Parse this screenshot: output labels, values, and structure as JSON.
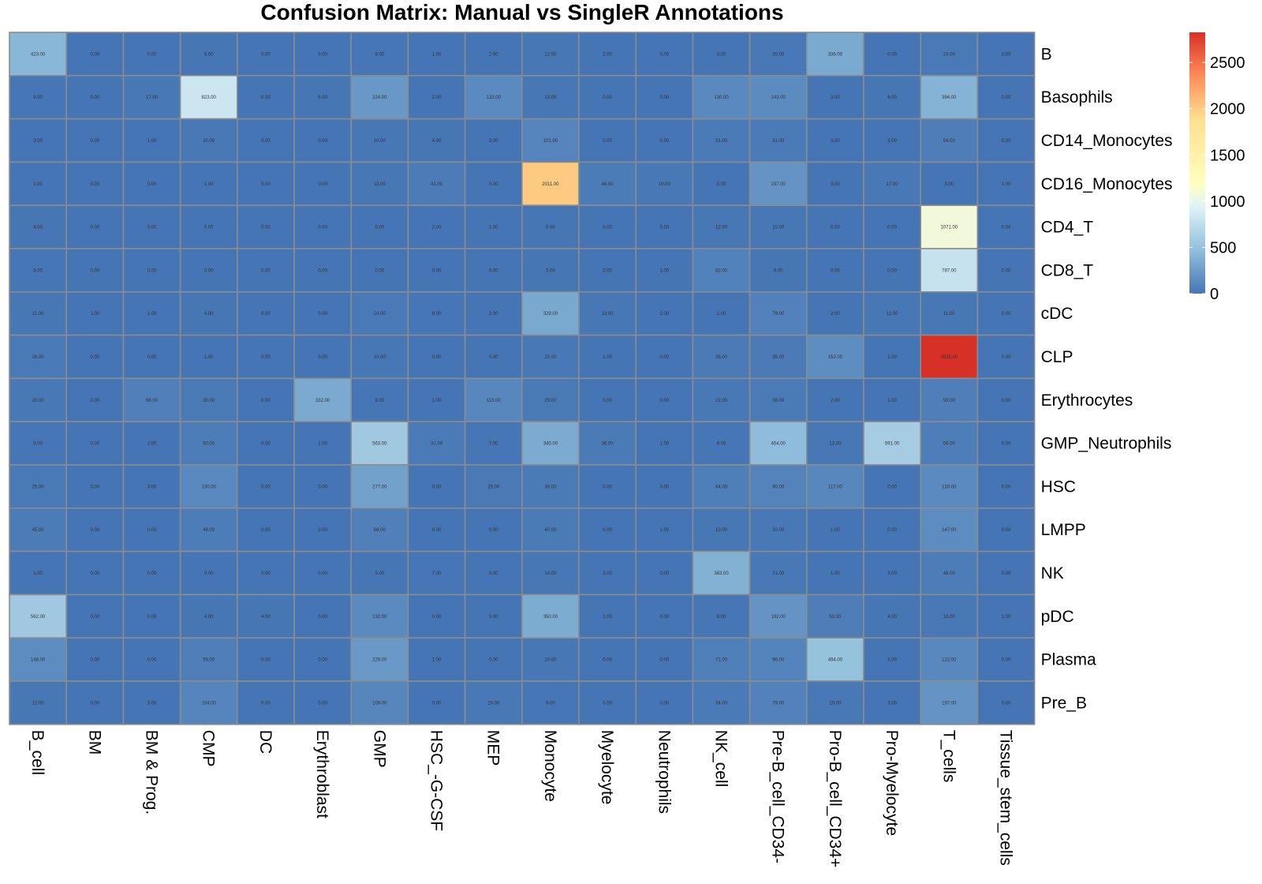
{
  "chart_data": {
    "type": "heatmap",
    "title": "Confusion Matrix: Manual vs SingleR Annotations",
    "rows": [
      "B",
      "Basophils",
      "CD14_Monocytes",
      "CD16_Monocytes",
      "CD4_T",
      "CD8_T",
      "cDC",
      "CLP",
      "Erythrocytes",
      "GMP_Neutrophils",
      "HSC",
      "LMPP",
      "NK",
      "pDC",
      "Plasma",
      "Pre_B"
    ],
    "columns": [
      "B_cell",
      "BM",
      "BM & Prog.",
      "CMP",
      "DC",
      "Erythroblast",
      "GMP",
      "HSC_-G-CSF",
      "MEP",
      "Monocyte",
      "Myelocyte",
      "Neutrophils",
      "NK_cell",
      "Pre-B_cell_CD34-",
      "Pro-B_cell_CD34+",
      "Pro-Myelocyte",
      "T_cells",
      "Tissue_stem_cells"
    ],
    "values": [
      [
        423,
        0,
        0,
        5,
        0,
        0,
        8,
        1,
        2,
        12,
        2,
        0,
        3,
        20,
        336,
        0,
        23,
        0
      ],
      [
        9,
        0,
        17,
        823,
        0,
        6,
        224,
        2,
        133,
        13,
        0,
        0,
        130,
        143,
        3,
        6,
        394,
        0
      ],
      [
        3,
        0,
        1,
        20,
        0,
        0,
        10,
        4,
        3,
        101,
        0,
        0,
        31,
        31,
        3,
        3,
        54,
        0
      ],
      [
        2,
        0,
        0,
        1,
        0,
        0,
        13,
        41,
        0,
        2011,
        46,
        19,
        0,
        197,
        3,
        17,
        3,
        1
      ],
      [
        4,
        0,
        0,
        0,
        0,
        0,
        0,
        2,
        1,
        6,
        0,
        0,
        12,
        10,
        0,
        0,
        1071,
        0
      ],
      [
        8,
        0,
        0,
        0,
        0,
        0,
        0,
        0,
        0,
        5,
        0,
        1,
        82,
        6,
        0,
        0,
        787,
        0
      ],
      [
        11,
        1,
        1,
        4,
        0,
        0,
        24,
        9,
        2,
        329,
        13,
        2,
        2,
        79,
        2,
        11,
        11,
        0
      ],
      [
        26,
        0,
        0,
        1,
        0,
        0,
        10,
        0,
        0,
        22,
        1,
        0,
        35,
        35,
        152,
        1,
        2826,
        0
      ],
      [
        20,
        0,
        66,
        30,
        0,
        332,
        8,
        1,
        113,
        29,
        0,
        0,
        22,
        38,
        2,
        1,
        59,
        0
      ],
      [
        9,
        0,
        2,
        50,
        0,
        1,
        563,
        31,
        7,
        340,
        36,
        1,
        8,
        454,
        13,
        591,
        56,
        0
      ],
      [
        25,
        0,
        3,
        130,
        0,
        0,
        277,
        0,
        28,
        38,
        0,
        0,
        64,
        90,
        117,
        0,
        133,
        0
      ],
      [
        45,
        0,
        0,
        48,
        0,
        0,
        66,
        0,
        0,
        40,
        0,
        1,
        10,
        20,
        1,
        0,
        147,
        0
      ],
      [
        1,
        0,
        0,
        0,
        0,
        0,
        5,
        7,
        0,
        14,
        3,
        0,
        383,
        21,
        1,
        3,
        48,
        0
      ],
      [
        562,
        0,
        0,
        4,
        4,
        0,
        132,
        0,
        0,
        350,
        1,
        0,
        8,
        192,
        53,
        4,
        16,
        1
      ],
      [
        148,
        0,
        0,
        59,
        0,
        0,
        229,
        1,
        0,
        10,
        0,
        0,
        71,
        96,
        494,
        3,
        122,
        0
      ],
      [
        12,
        0,
        3,
        104,
        0,
        0,
        109,
        0,
        19,
        9,
        0,
        0,
        34,
        79,
        19,
        3,
        197,
        0
      ]
    ],
    "value_format": "2 decimals",
    "color_scale": {
      "stops": [
        {
          "value": 0,
          "color": "#4575b4"
        },
        {
          "value": 471,
          "color": "#91bfdb"
        },
        {
          "value": 942,
          "color": "#e0f3f8"
        },
        {
          "value": 1184,
          "color": "#ffffbf"
        },
        {
          "value": 1884,
          "color": "#fee090"
        },
        {
          "value": 2355,
          "color": "#fc8d59"
        },
        {
          "value": 2826,
          "color": "#d73027"
        }
      ],
      "legend_ticks": [
        0,
        500,
        1000,
        1500,
        2000,
        2500
      ],
      "legend_max": 2826
    },
    "grid_color": "#8c8c8c",
    "legend_position": "right"
  }
}
